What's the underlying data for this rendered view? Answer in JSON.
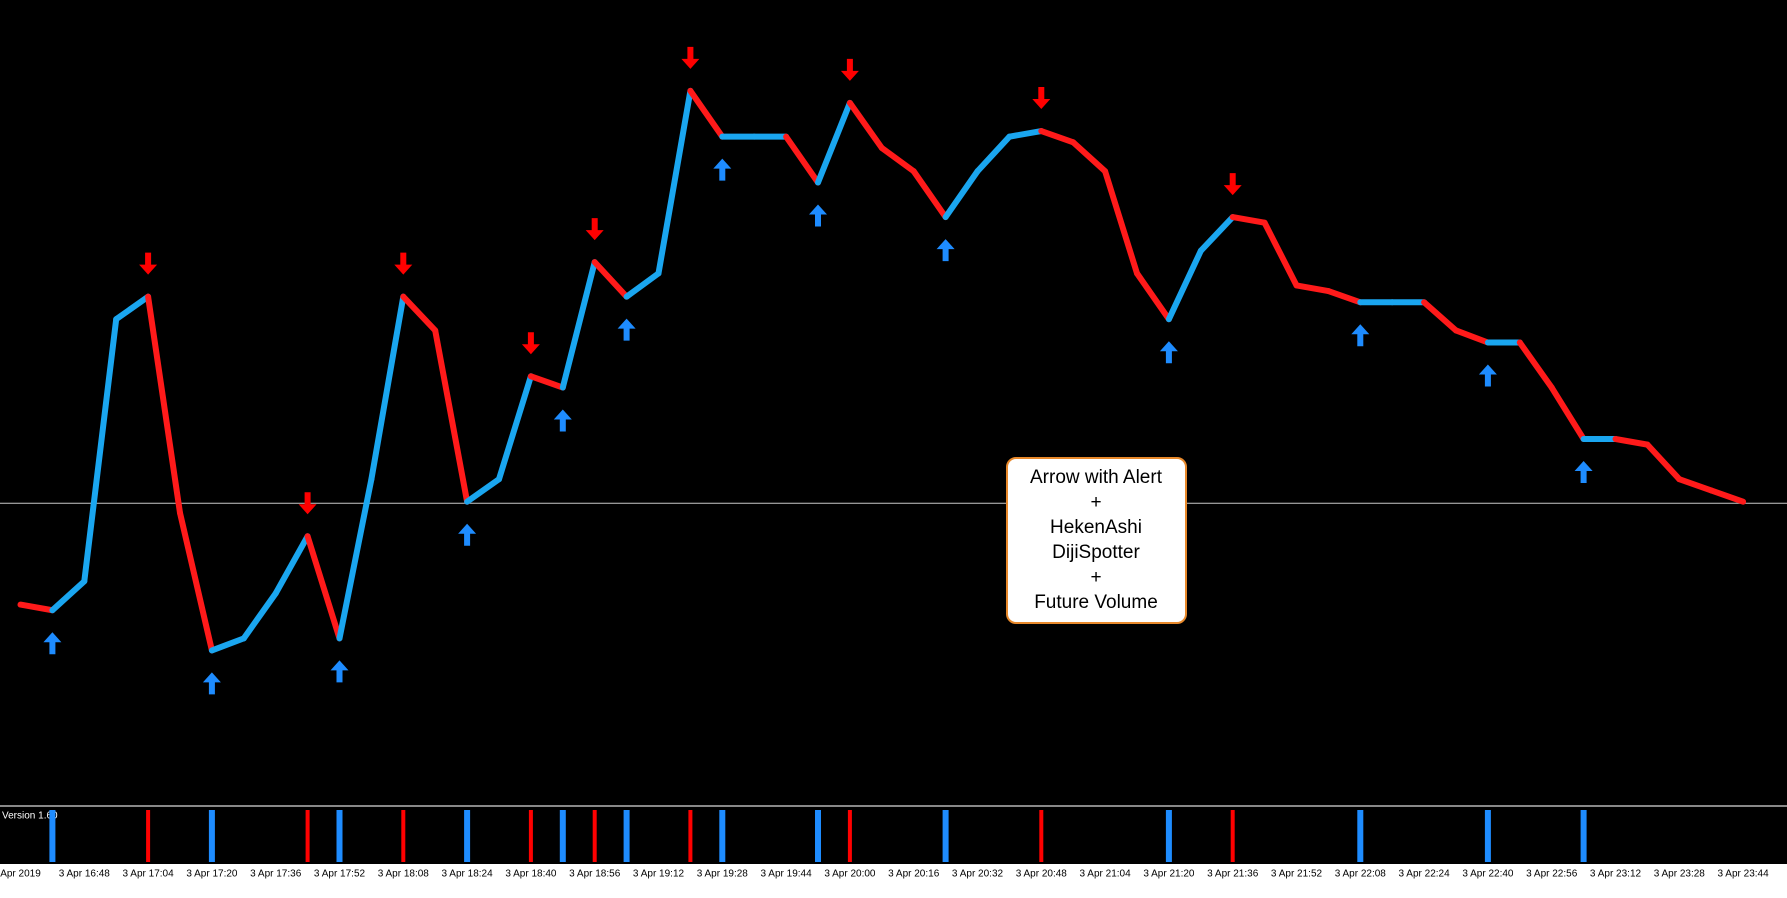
{
  "chart_data": {
    "type": "heikin-ashi",
    "categories": [
      "Apr 2019",
      null,
      "3 Apr 16:48",
      null,
      "3 Apr 17:04",
      null,
      "3 Apr 17:20",
      null,
      "3 Apr 17:36",
      null,
      "3 Apr 17:52",
      null,
      "3 Apr 18:08",
      null,
      "3 Apr 18:24",
      null,
      "3 Apr 18:40",
      null,
      "3 Apr 18:56",
      null,
      "3 Apr 19:12",
      null,
      "3 Apr 19:28",
      null,
      "3 Apr 19:44",
      null,
      "3 Apr 20:00",
      null,
      "3 Apr 20:16",
      null,
      "3 Apr 20:32",
      null,
      "3 Apr 20:48",
      null,
      "3 Apr 21:04",
      null,
      "3 Apr 21:20",
      null,
      "3 Apr 21:36",
      null,
      "3 Apr 21:52",
      null,
      "3 Apr 22:08",
      null,
      "3 Apr 22:24",
      null,
      "3 Apr 22:40",
      null,
      "3 Apr 22:56",
      null,
      "3 Apr 23:12",
      null,
      "3 Apr 23:28",
      null,
      "3 Apr 23:44",
      null
    ],
    "series": [
      {
        "color": "#ff1a1a",
        "up_color": "#1aa6f0",
        "values": [
          24.8,
          24.1,
          27.7,
          60.3,
          63.1,
          36.2,
          19.1,
          20.6,
          26.2,
          33.3,
          20.6,
          40.4,
          63.1,
          58.9,
          37.6,
          40.4,
          53.2,
          51.8,
          67.4,
          63.1,
          66.0,
          88.7,
          83.0,
          83.0,
          83.0,
          77.3,
          87.2,
          81.6,
          78.7,
          73.0,
          78.7,
          83.0,
          83.7,
          82.3,
          78.7,
          66.0,
          60.3,
          68.8,
          73.0,
          72.3,
          64.5,
          63.8,
          62.4,
          62.4,
          62.4,
          58.9,
          57.4,
          57.4,
          51.8,
          45.4,
          45.4,
          44.7,
          40.4,
          39.0,
          37.6,
          null
        ]
      }
    ],
    "ylim": [
      0,
      100
    ],
    "reference_line": 37.4,
    "buy_arrow_color": "#1e8cff",
    "sell_arrow_color": "#ff0000",
    "indicator_label": "Version 1.60",
    "annotation": [
      "Arrow with Alert",
      "+",
      "HekenAshi",
      "DijiSpotter",
      "+",
      "Future Volume"
    ]
  }
}
